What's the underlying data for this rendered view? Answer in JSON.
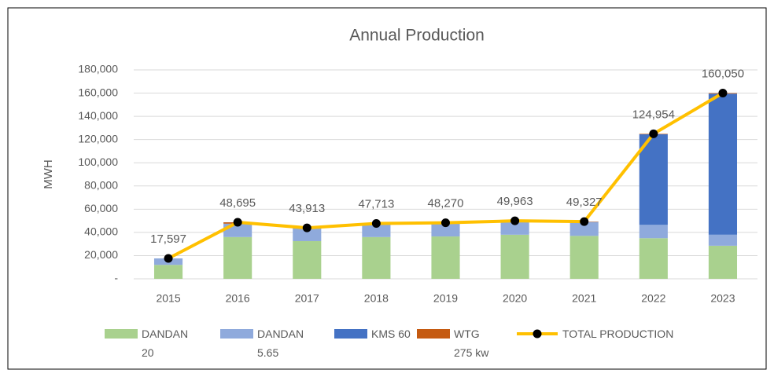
{
  "chart_data": {
    "type": "bar-line",
    "title": "Annual Production",
    "y_label": "MWH",
    "categories": [
      "2015",
      "2016",
      "2017",
      "2018",
      "2019",
      "2020",
      "2021",
      "2022",
      "2023"
    ],
    "series": [
      {
        "name": "DANDAN 20",
        "type": "bar",
        "color": "#a9d18e",
        "values": [
          12000,
          36000,
          32500,
          36000,
          36500,
          38000,
          37000,
          35000,
          28500
        ]
      },
      {
        "name": "DANDAN 5.65",
        "type": "bar",
        "color": "#8faadc",
        "values": [
          5600,
          11500,
          11000,
          11000,
          11000,
          11500,
          12000,
          11500,
          9500
        ]
      },
      {
        "name": "KMS 60",
        "type": "bar",
        "color": "#4472c4",
        "values": [
          0,
          0,
          0,
          0,
          0,
          0,
          0,
          78000,
          121500
        ]
      },
      {
        "name": "WTG 275 kw",
        "type": "bar",
        "color": "#c55a11",
        "values": [
          0,
          1200,
          400,
          700,
          700,
          400,
          300,
          400,
          500
        ]
      },
      {
        "name": "TOTAL PRODUCTION",
        "type": "line",
        "color": "#ffc000",
        "marker_color": "#000000",
        "values": [
          17597,
          48695,
          43913,
          47713,
          48270,
          49963,
          49327,
          124954,
          160050
        ],
        "value_labels": [
          "17,597",
          "48,695",
          "43,913",
          "47,713",
          "48,270",
          "49,963",
          "49,327",
          "124,954",
          "160,050"
        ]
      }
    ],
    "ylim": [
      0,
      180000
    ],
    "yticks": [
      {
        "value": 0,
        "label": "-"
      },
      {
        "value": 20000,
        "label": "20,000"
      },
      {
        "value": 40000,
        "label": "40,000"
      },
      {
        "value": 60000,
        "label": "60,000"
      },
      {
        "value": 80000,
        "label": "80,000"
      },
      {
        "value": 100000,
        "label": "100,000"
      },
      {
        "value": 120000,
        "label": "120,000"
      },
      {
        "value": 140000,
        "label": "140,000"
      },
      {
        "value": 160000,
        "label": "160,000"
      },
      {
        "value": 180000,
        "label": "180,000"
      }
    ],
    "grid": true,
    "legend": "bottom"
  }
}
